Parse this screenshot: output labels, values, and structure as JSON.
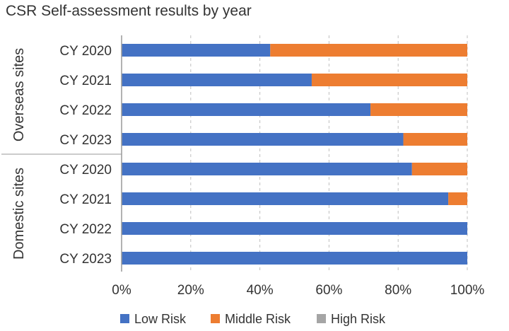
{
  "chart_data": {
    "type": "bar",
    "orientation": "horizontal",
    "stacked": true,
    "title": "CSR Self-assessment results by year",
    "xlim": [
      0,
      100
    ],
    "x_ticks": [
      "0%",
      "20%",
      "40%",
      "60%",
      "80%",
      "100%"
    ],
    "grid": "vertical dashed",
    "legend_position": "bottom",
    "groups": [
      {
        "label": "Overseas sites",
        "categories": [
          "CY 2020",
          "CY 2021",
          "CY 2022",
          "CY 2023"
        ]
      },
      {
        "label": "Domestic sites",
        "categories": [
          "CY 2020",
          "CY 2021",
          "CY 2022",
          "CY 2023"
        ]
      }
    ],
    "series": [
      {
        "name": "Low Risk",
        "color": "#4472c4",
        "values": [
          43,
          55,
          72,
          81.5,
          84,
          94.5,
          100,
          100
        ]
      },
      {
        "name": "Middle Risk",
        "color": "#ed7d31",
        "values": [
          57,
          45,
          28,
          18.5,
          16,
          5.5,
          0,
          0
        ]
      },
      {
        "name": "High Risk",
        "color": "#a5a5a5",
        "values": [
          0,
          0,
          0,
          0,
          0,
          0,
          0,
          0
        ]
      }
    ]
  }
}
